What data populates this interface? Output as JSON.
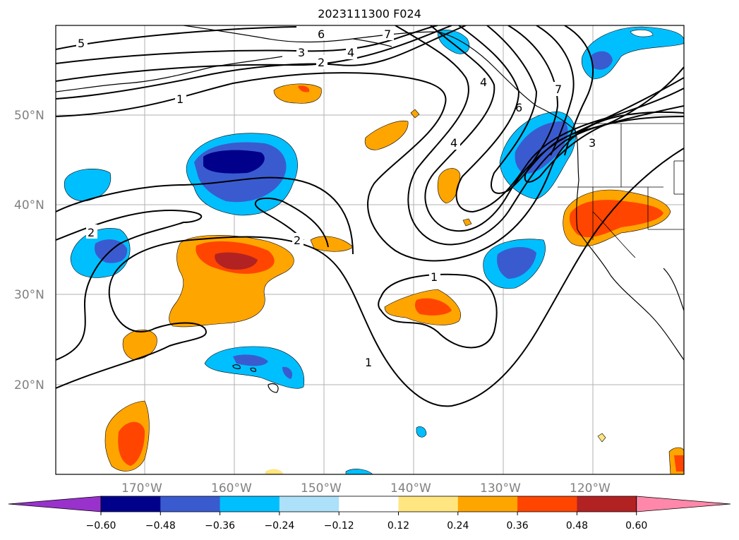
{
  "title": "2023111300 F024",
  "map": {
    "lat_labels": [
      "50°N",
      "40°N",
      "30°N",
      "20°N"
    ],
    "lon_labels": [
      "170°W",
      "160°W",
      "150°W",
      "140°W",
      "130°W",
      "120°W"
    ],
    "contour_labels": [
      "5",
      "6",
      "7",
      "3",
      "4",
      "2",
      "1",
      "2",
      "2",
      "4",
      "1",
      "1",
      "7",
      "3",
      "6",
      "4"
    ]
  },
  "colorbar": {
    "ticks": [
      "−0.60",
      "−0.48",
      "−0.36",
      "−0.24",
      "−0.12",
      "0.12",
      "0.24",
      "0.36",
      "0.48",
      "0.60"
    ],
    "colors": [
      "#9932CC",
      "#00008B",
      "#3A5BD0",
      "#00BFFF",
      "#ADE1FA",
      "#FFFFFF",
      "#FFE680",
      "#FFA500",
      "#FF4500",
      "#B22222",
      "#FF88AA"
    ]
  }
}
